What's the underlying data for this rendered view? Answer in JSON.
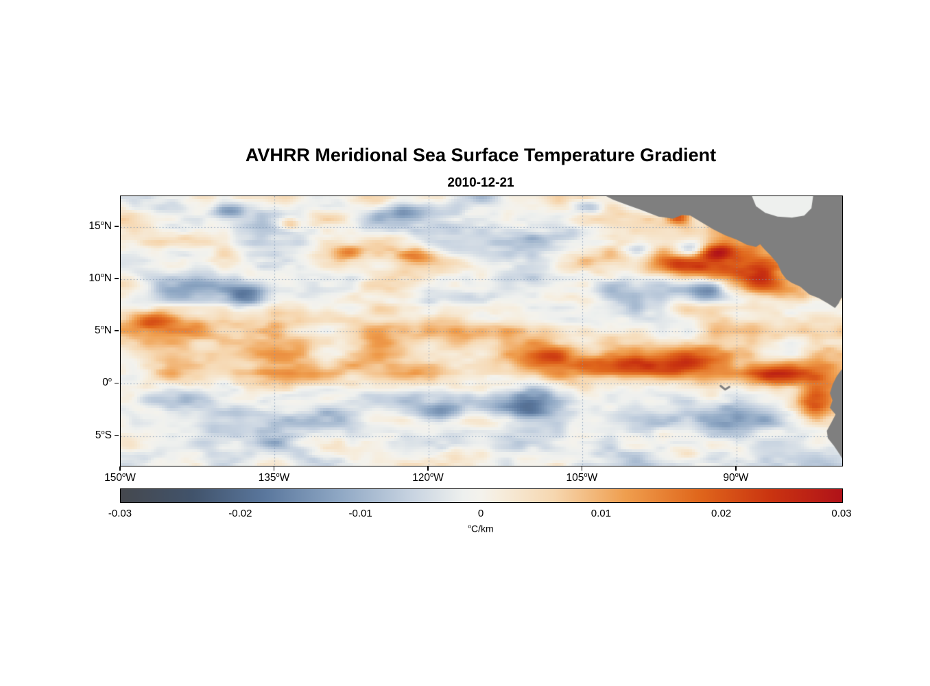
{
  "chart_data": {
    "type": "heatmap",
    "title": "AVHRR Meridional Sea Surface Temperature Gradient",
    "subtitle": "2010-12-21",
    "deg": "o",
    "unit_prefix": "o",
    "unit": "C/km",
    "extent": {
      "lon_min": -150,
      "lon_max": -79.7,
      "lat_min": -7.85,
      "lat_max": 17.95
    },
    "x_ticks": [
      {
        "value": -150,
        "num": "150",
        "suffix": "W"
      },
      {
        "value": -135,
        "num": "135",
        "suffix": "W"
      },
      {
        "value": -120,
        "num": "120",
        "suffix": "W"
      },
      {
        "value": -105,
        "num": "105",
        "suffix": "W"
      },
      {
        "value": -90,
        "num": "90",
        "suffix": "W"
      }
    ],
    "y_ticks": [
      {
        "value": 15,
        "num": "15",
        "suffix": "N"
      },
      {
        "value": 10,
        "num": "10",
        "suffix": "N"
      },
      {
        "value": 5,
        "num": "5",
        "suffix": "N"
      },
      {
        "value": 0,
        "num": "0",
        "suffix": ""
      },
      {
        "value": -5,
        "num": "5",
        "suffix": "S"
      }
    ],
    "gridline_style": "dotted",
    "gridline_color": "#7b95b5",
    "colorbar": {
      "orientation": "horizontal",
      "min": -0.03,
      "max": 0.03,
      "ticks": [
        {
          "value": -0.03,
          "label": "-0.03"
        },
        {
          "value": -0.02,
          "label": "-0.02"
        },
        {
          "value": -0.01,
          "label": "-0.01"
        },
        {
          "value": 0,
          "label": "0"
        },
        {
          "value": 0.01,
          "label": "0.01"
        },
        {
          "value": 0.02,
          "label": "0.02"
        },
        {
          "value": 0.03,
          "label": "0.03"
        }
      ],
      "stops": [
        [
          -0.03,
          "#45484e"
        ],
        [
          -0.024,
          "#41536b"
        ],
        [
          -0.018,
          "#5a779d"
        ],
        [
          -0.012,
          "#8da6c3"
        ],
        [
          -0.006,
          "#c6d2e0"
        ],
        [
          -0.0015,
          "#eef0ee"
        ],
        [
          0,
          "#f4f2ec"
        ],
        [
          0.0015,
          "#f6eddd"
        ],
        [
          0.006,
          "#f6d7b0"
        ],
        [
          0.012,
          "#ef9e4e"
        ],
        [
          0.018,
          "#e0671c"
        ],
        [
          0.024,
          "#ca3410"
        ],
        [
          0.03,
          "#b01219"
        ]
      ]
    },
    "field": {
      "comment_units": "coarse estimated meridional SST gradient, milli-degC per km",
      "lons": [
        -150,
        -140,
        -130,
        -120,
        -110,
        -100,
        -90,
        -80
      ],
      "lats": [
        18,
        15,
        12,
        9,
        6,
        3,
        1,
        -1,
        -3,
        -5,
        -8
      ],
      "values_milliC_per_km": [
        [
          -1,
          -2,
          1,
          -2,
          -1,
          -3,
          1,
          0
        ],
        [
          3,
          -4,
          -1,
          -3,
          -4,
          5,
          9,
          2
        ],
        [
          0,
          -3,
          2,
          4,
          -3,
          10,
          12,
          3
        ],
        [
          -2,
          -6,
          -3,
          1,
          2,
          -5,
          7,
          5
        ],
        [
          9,
          5,
          3,
          6,
          3,
          4,
          3,
          5
        ],
        [
          5,
          6,
          7,
          6,
          9,
          11,
          7,
          6
        ],
        [
          6,
          7,
          8,
          9,
          12,
          14,
          11,
          9
        ],
        [
          -3,
          -2,
          -4,
          -4,
          -5,
          -3,
          1,
          10
        ],
        [
          -2,
          -4,
          -3,
          -6,
          -4,
          -5,
          -7,
          5
        ],
        [
          -1,
          -2,
          -3,
          -2,
          -3,
          -3,
          -4,
          -1
        ],
        [
          -2,
          -1,
          -2,
          -2,
          -1,
          -2,
          -3,
          -2
        ]
      ]
    },
    "hotspots": [
      {
        "lon": -95.6,
        "lat": 15.9,
        "amp": 0.02,
        "rx": 1.2,
        "ry": 0.7
      },
      {
        "lon": -95.0,
        "lat": 11.3,
        "amp": 0.02,
        "rx": 4.5,
        "ry": 1.0
      },
      {
        "lon": -99.5,
        "lat": 13.2,
        "amp": -0.016,
        "rx": 1.8,
        "ry": 1.2
      },
      {
        "lon": -94.5,
        "lat": 13.0,
        "amp": -0.013,
        "rx": 1.5,
        "ry": 0.9
      },
      {
        "lon": -87.6,
        "lat": 10.2,
        "amp": 0.014,
        "rx": 1.8,
        "ry": 1.3
      },
      {
        "lon": -93.0,
        "lat": 8.8,
        "amp": -0.013,
        "rx": 2.5,
        "ry": 1.2
      },
      {
        "lon": -137.5,
        "lat": 8.4,
        "amp": -0.013,
        "rx": 2.0,
        "ry": 0.9
      },
      {
        "lon": -146.5,
        "lat": 6.3,
        "amp": 0.012,
        "rx": 2.5,
        "ry": 0.9
      },
      {
        "lon": -98.0,
        "lat": 1.7,
        "amp": 0.013,
        "rx": 7.0,
        "ry": 1.1
      },
      {
        "lon": -107.5,
        "lat": 2.6,
        "amp": 0.01,
        "rx": 3.0,
        "ry": 1.0
      },
      {
        "lon": -86.0,
        "lat": 0.8,
        "amp": 0.012,
        "rx": 3.0,
        "ry": 0.8
      },
      {
        "lon": -82.5,
        "lat": -2.0,
        "amp": 0.02,
        "rx": 1.6,
        "ry": 1.4
      },
      {
        "lon": -112.0,
        "lat": -2.2,
        "amp": -0.011,
        "rx": 4.0,
        "ry": 1.0
      },
      {
        "lon": -119.0,
        "lat": -2.6,
        "amp": -0.01,
        "rx": 2.5,
        "ry": 0.8
      },
      {
        "lon": -122.5,
        "lat": 16.6,
        "amp": -0.011,
        "rx": 2.0,
        "ry": 0.8
      },
      {
        "lon": -104.5,
        "lat": 16.9,
        "amp": -0.011,
        "rx": 1.6,
        "ry": 0.7
      },
      {
        "lon": -139.5,
        "lat": 16.5,
        "amp": -0.011,
        "rx": 1.6,
        "ry": 0.7
      },
      {
        "lon": -128.0,
        "lat": 12.5,
        "amp": 0.01,
        "rx": 1.6,
        "ry": 0.7
      },
      {
        "lon": -121.5,
        "lat": 12.3,
        "amp": 0.011,
        "rx": 1.8,
        "ry": 0.7
      },
      {
        "lon": -133.5,
        "lat": 15.2,
        "amp": 0.012,
        "rx": 1.2,
        "ry": 0.6
      },
      {
        "lon": -92.0,
        "lat": 12.6,
        "amp": 0.016,
        "rx": 1.5,
        "ry": 0.8
      }
    ],
    "land_color": "#7f7f7f",
    "caribbean_mask_color": "#eef0ee",
    "land_polygons": {
      "central_america": [
        [
          -103.2,
          18.2
        ],
        [
          -102.0,
          17.6
        ],
        [
          -100.6,
          17.1
        ],
        [
          -99.2,
          16.6
        ],
        [
          -97.6,
          16.0
        ],
        [
          -96.2,
          15.8
        ],
        [
          -95.3,
          16.15
        ],
        [
          -94.5,
          16.1
        ],
        [
          -93.5,
          15.5
        ],
        [
          -92.3,
          14.8
        ],
        [
          -91.1,
          14.2
        ],
        [
          -90.0,
          13.8
        ],
        [
          -89.0,
          13.3
        ],
        [
          -88.1,
          13.1
        ],
        [
          -87.7,
          13.35
        ],
        [
          -87.3,
          12.9
        ],
        [
          -86.7,
          12.3
        ],
        [
          -86.0,
          11.5
        ],
        [
          -85.6,
          10.6
        ],
        [
          -85.15,
          10.0
        ],
        [
          -84.6,
          9.65
        ],
        [
          -83.8,
          9.3
        ],
        [
          -82.9,
          8.55
        ],
        [
          -82.0,
          8.2
        ],
        [
          -81.1,
          7.7
        ],
        [
          -80.4,
          7.25
        ],
        [
          -80.05,
          7.7
        ],
        [
          -79.85,
          8.1
        ],
        [
          -79.4,
          8.6
        ],
        [
          -79.0,
          8.9
        ],
        [
          -79.0,
          18.2
        ]
      ],
      "caribbean_mask": [
        [
          -88.6,
          18.2
        ],
        [
          -88.1,
          17.0
        ],
        [
          -87.2,
          16.35
        ],
        [
          -86.0,
          16.0
        ],
        [
          -84.6,
          15.9
        ],
        [
          -83.4,
          16.1
        ],
        [
          -82.7,
          16.8
        ],
        [
          -82.5,
          18.2
        ]
      ],
      "south_america": [
        [
          -79.0,
          1.9
        ],
        [
          -79.8,
          1.3
        ],
        [
          -80.25,
          0.7
        ],
        [
          -80.65,
          -0.1
        ],
        [
          -80.9,
          -0.9
        ],
        [
          -80.65,
          -1.6
        ],
        [
          -80.9,
          -2.3
        ],
        [
          -80.35,
          -2.95
        ],
        [
          -80.75,
          -3.7
        ],
        [
          -81.2,
          -4.5
        ],
        [
          -81.1,
          -5.2
        ],
        [
          -80.5,
          -5.95
        ],
        [
          -79.95,
          -6.75
        ],
        [
          -79.5,
          -7.5
        ],
        [
          -79.0,
          -8.2
        ]
      ],
      "galapagos_line": [
        [
          -91.55,
          -0.2
        ],
        [
          -91.1,
          -0.55
        ],
        [
          -90.7,
          -0.3
        ]
      ]
    }
  }
}
